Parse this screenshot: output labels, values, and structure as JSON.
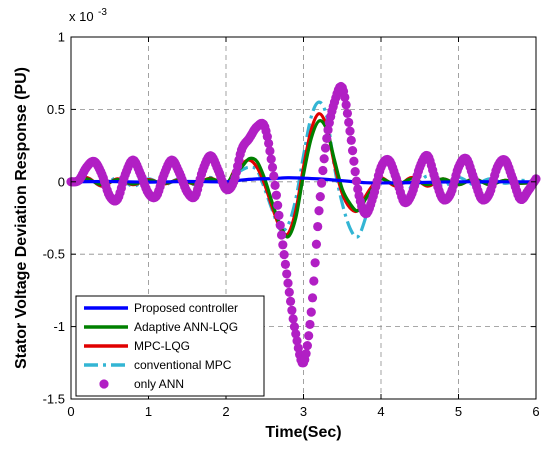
{
  "chart_data": {
    "type": "line",
    "xlabel": "Time(Sec)",
    "ylabel": "Stator Voltage Deviation Response  (PU)",
    "y_exponent_label": "x 10",
    "y_exponent_power": "-3",
    "xlim": [
      0,
      6
    ],
    "ylim": [
      -1.5,
      1
    ],
    "xticks": [
      0,
      1,
      2,
      3,
      4,
      5,
      6
    ],
    "xtick_labels": [
      "0",
      "1",
      "2",
      "3",
      "4",
      "5",
      "6"
    ],
    "yticks": [
      1,
      0.5,
      0,
      -0.5,
      -1,
      -1.5
    ],
    "ytick_labels": [
      "1",
      "0.5",
      "0",
      "-0.5",
      "-1",
      "-1.5"
    ],
    "grid": true,
    "legend_position": "bottom-left",
    "series": [
      {
        "name": "Proposed controller",
        "color": "#0000ff",
        "style": "solid",
        "x": [
          0,
          0.5,
          1,
          1.5,
          2,
          2.2,
          2.4,
          2.6,
          2.8,
          3.0,
          3.2,
          3.4,
          3.6,
          3.8,
          4.0,
          4.5,
          5,
          5.5,
          6
        ],
        "y": [
          0,
          0.002,
          -0.002,
          0.002,
          0,
          0.012,
          0.02,
          0.022,
          0.028,
          0.025,
          0.02,
          0.012,
          0.003,
          -0.006,
          -0.008,
          -0.005,
          0,
          0,
          0
        ]
      },
      {
        "name": "Adaptive ANN-LQG",
        "color": "#008000",
        "style": "solid",
        "x": [
          0,
          0.2,
          0.4,
          0.6,
          0.8,
          1.0,
          1.2,
          1.4,
          1.6,
          1.8,
          2.0,
          2.1,
          2.2,
          2.3,
          2.4,
          2.5,
          2.6,
          2.7,
          2.8,
          2.9,
          3.0,
          3.1,
          3.2,
          3.3,
          3.4,
          3.5,
          3.6,
          3.7,
          3.8,
          3.9,
          4.0,
          4.2,
          4.4,
          4.6,
          4.8,
          5.0,
          5.2,
          5.4,
          5.6,
          5.8,
          6.0
        ],
        "y": [
          0,
          0.02,
          -0.02,
          0.015,
          -0.015,
          0.01,
          -0.01,
          0.01,
          -0.01,
          0.02,
          -0.01,
          0.06,
          0.1,
          0.16,
          0.14,
          0.02,
          -0.15,
          -0.3,
          -0.38,
          -0.25,
          0.05,
          0.3,
          0.42,
          0.36,
          0.15,
          -0.05,
          -0.15,
          -0.2,
          -0.12,
          -0.04,
          0.02,
          -0.02,
          0.02,
          -0.02,
          0.02,
          -0.02,
          0.02,
          -0.02,
          0.01,
          -0.01,
          0
        ]
      },
      {
        "name": " MPC-LQG",
        "color": "#e00000",
        "style": "solid",
        "x": [
          0,
          0.2,
          0.4,
          0.6,
          0.8,
          1.0,
          1.2,
          1.4,
          1.6,
          1.8,
          2.0,
          2.1,
          2.2,
          2.3,
          2.4,
          2.5,
          2.6,
          2.7,
          2.8,
          2.9,
          3.0,
          3.1,
          3.2,
          3.3,
          3.4,
          3.5,
          3.6,
          3.7,
          3.8,
          3.9,
          4.0,
          4.2,
          4.4,
          4.6,
          4.8,
          5.0,
          5.2,
          5.4,
          5.6,
          5.8,
          6.0
        ],
        "y": [
          0,
          0.03,
          -0.03,
          0.02,
          -0.02,
          0.015,
          -0.015,
          0.015,
          -0.015,
          0.025,
          -0.02,
          0.07,
          0.12,
          0.15,
          0.1,
          -0.02,
          -0.18,
          -0.32,
          -0.36,
          -0.2,
          0.1,
          0.36,
          0.47,
          0.38,
          0.12,
          -0.08,
          -0.18,
          -0.2,
          -0.1,
          -0.02,
          0.03,
          -0.03,
          0.03,
          -0.03,
          0.02,
          -0.02,
          0.02,
          -0.02,
          0.01,
          -0.01,
          0
        ]
      },
      {
        "name": "conventional MPC",
        "color": "#33b5d4",
        "style": "dashdot",
        "x": [
          0,
          0.2,
          0.4,
          0.6,
          0.8,
          1.0,
          1.2,
          1.4,
          1.6,
          1.8,
          2.0,
          2.1,
          2.2,
          2.3,
          2.4,
          2.5,
          2.6,
          2.7,
          2.8,
          2.9,
          3.0,
          3.1,
          3.2,
          3.3,
          3.4,
          3.5,
          3.6,
          3.7,
          3.8,
          3.9,
          4.0,
          4.1,
          4.2,
          4.4,
          4.6,
          4.8,
          5.0,
          5.2,
          5.4,
          5.6,
          5.8,
          6.0
        ],
        "y": [
          0,
          0.03,
          -0.03,
          0.03,
          -0.03,
          0.02,
          -0.02,
          0.02,
          -0.02,
          0.03,
          -0.03,
          0.04,
          0.08,
          0.1,
          0.08,
          -0.05,
          -0.2,
          -0.33,
          -0.3,
          -0.12,
          0.18,
          0.45,
          0.55,
          0.45,
          0.1,
          -0.15,
          -0.32,
          -0.38,
          -0.25,
          -0.05,
          0.1,
          0.13,
          0.05,
          -0.04,
          0.04,
          -0.03,
          0.03,
          -0.02,
          0.02,
          -0.01,
          0.01,
          0
        ]
      },
      {
        "name": "only ANN",
        "color": "#b11fc4",
        "style": "markers",
        "x": [
          0,
          0.1,
          0.2,
          0.3,
          0.4,
          0.5,
          0.6,
          0.7,
          0.8,
          0.9,
          1.0,
          1.1,
          1.2,
          1.3,
          1.4,
          1.5,
          1.6,
          1.7,
          1.8,
          1.9,
          2.0,
          2.1,
          2.2,
          2.3,
          2.4,
          2.5,
          2.6,
          2.7,
          2.8,
          2.9,
          3.0,
          3.1,
          3.2,
          3.3,
          3.4,
          3.5,
          3.6,
          3.7,
          3.8,
          3.9,
          4.0,
          4.1,
          4.2,
          4.3,
          4.4,
          4.5,
          4.6,
          4.7,
          4.8,
          4.9,
          5.0,
          5.1,
          5.2,
          5.3,
          5.4,
          5.5,
          5.6,
          5.7,
          5.8,
          5.9,
          6.0
        ],
        "y": [
          0,
          0.01,
          0.1,
          0.14,
          0.05,
          -0.1,
          -0.12,
          0.05,
          0.15,
          0.05,
          -0.08,
          -0.1,
          0.05,
          0.15,
          0.06,
          -0.07,
          -0.1,
          0.08,
          0.18,
          0.08,
          -0.05,
          0,
          0.22,
          0.3,
          0.38,
          0.38,
          0.1,
          -0.3,
          -0.7,
          -1.05,
          -1.25,
          -0.9,
          -0.2,
          0.3,
          0.55,
          0.65,
          0.35,
          -0.05,
          -0.22,
          -0.1,
          0.1,
          0.15,
          0.02,
          -0.14,
          -0.08,
          0.1,
          0.18,
          0.02,
          -0.12,
          -0.08,
          0.1,
          0.16,
          0.02,
          -0.12,
          -0.08,
          0.1,
          0.15,
          0.02,
          -0.12,
          -0.06,
          0.02
        ]
      }
    ]
  }
}
